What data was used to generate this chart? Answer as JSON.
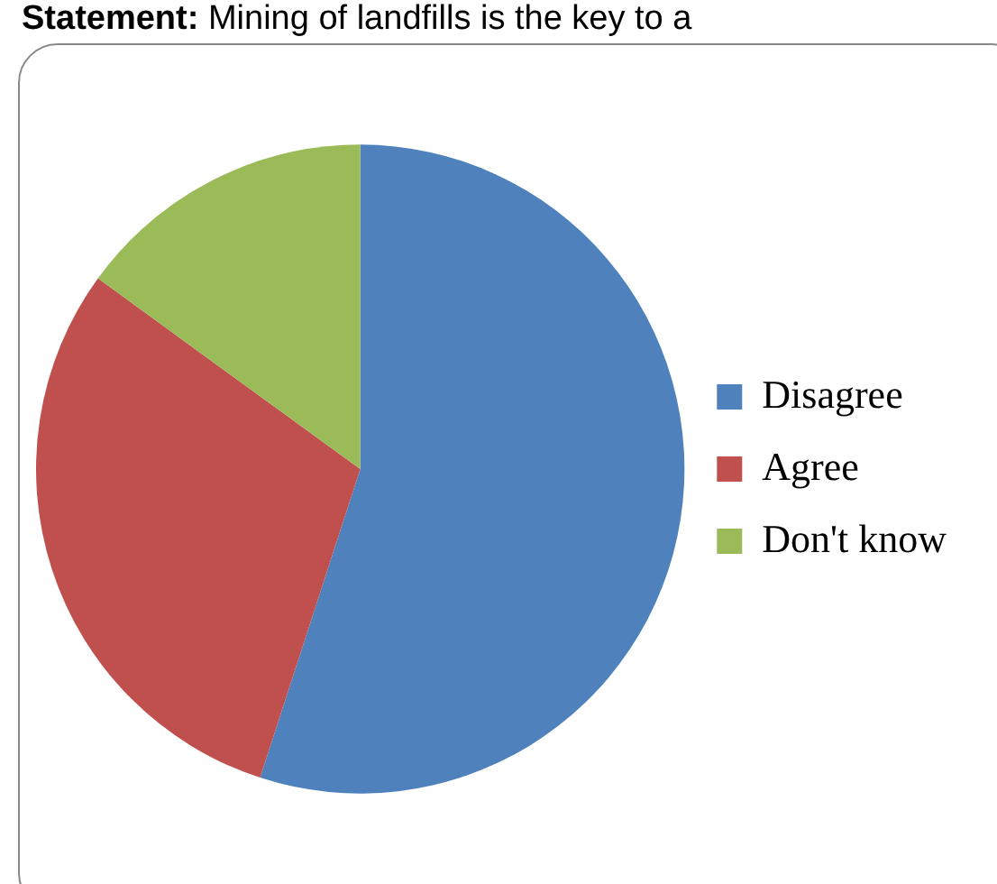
{
  "chart_data": {
    "type": "pie",
    "title": "Statement: Mining of landfills is the key to a",
    "categories": [
      "Disagree",
      "Agree",
      "Don't know"
    ],
    "values": [
      55,
      30,
      15
    ],
    "colors": [
      "#4f81bd",
      "#c0504d",
      "#9bbb59"
    ],
    "legend": "right"
  }
}
